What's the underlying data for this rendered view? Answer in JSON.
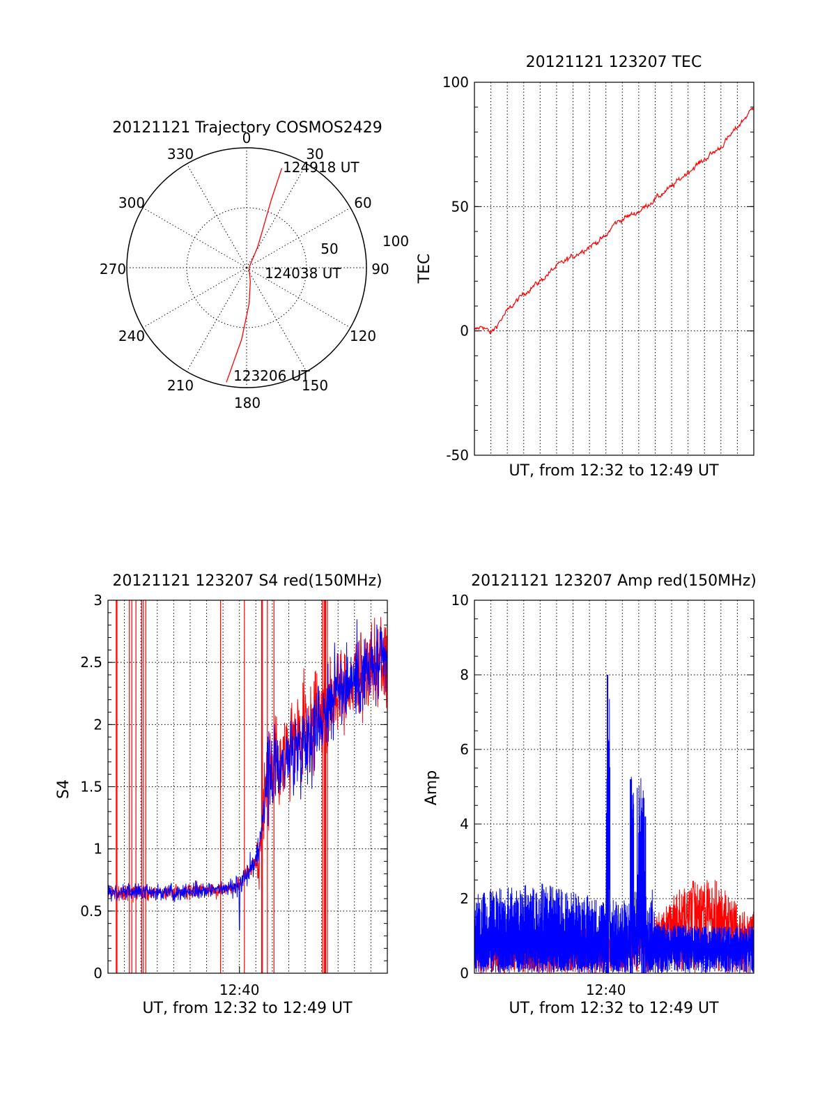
{
  "chart_data": [
    {
      "type": "polar",
      "title": "20121121 Trajectory COSMOS2429",
      "azimuth_labels": [
        "0",
        "30",
        "60",
        "90",
        "120",
        "150",
        "180",
        "210",
        "240",
        "270",
        "300",
        "330"
      ],
      "radial_labels": [
        "50",
        "100"
      ],
      "grid": true,
      "series": [
        {
          "color": "#ff0000",
          "azimuth": [
            190,
            184,
            176,
            165,
            90,
            28,
            20,
            19.5
          ],
          "zenith": [
            97,
            60,
            30,
            12,
            2,
            20,
            60,
            88
          ]
        }
      ],
      "annotations": [
        "124918 UT",
        "124038 UT",
        "123206 UT"
      ]
    },
    {
      "type": "line",
      "title": "20121121 123207 TEC",
      "xlabel": "UT, from 12:32 to 12:49 UT",
      "ylabel": "TEC",
      "ylim": [
        -50,
        100
      ],
      "yticks": [
        "100",
        "50",
        "0",
        "-50"
      ],
      "grid": true,
      "series": [
        {
          "color": "#ff0000",
          "x_min": [
            0,
            0.5,
            1,
            2,
            3,
            4,
            5,
            6,
            7,
            8,
            8.5,
            9,
            10,
            11,
            12,
            13,
            14,
            15,
            16,
            17
          ],
          "values": [
            0,
            2,
            -1,
            8,
            15,
            20,
            26,
            30,
            34,
            38,
            43,
            45,
            48,
            53,
            58,
            64,
            69,
            74,
            82,
            90
          ]
        }
      ]
    },
    {
      "type": "line",
      "title": "20121121 123207 S4 red(150MHz)",
      "xlabel": "UT, from 12:32 to 12:49 UT",
      "ylabel": "S4",
      "xticks": [
        "12:40"
      ],
      "ylim": [
        0,
        3
      ],
      "yticks": [
        "3",
        "2.5",
        "2",
        "1.5",
        "1",
        "0.5",
        "0"
      ],
      "grid": true,
      "series": [
        {
          "color": "#0000ff",
          "x_min": [
            0,
            4,
            7,
            8,
            9.2,
            9.6,
            11,
            12.5,
            14,
            17
          ],
          "values": [
            0.65,
            0.65,
            0.68,
            0.72,
            0.95,
            1.55,
            1.75,
            1.95,
            2.3,
            2.5
          ]
        },
        {
          "color": "#ff0000",
          "x_min": [
            0,
            4,
            7,
            8,
            9.2,
            9.6,
            11,
            12.5,
            14,
            17
          ],
          "values": [
            0.65,
            0.65,
            0.68,
            0.72,
            0.95,
            1.55,
            1.8,
            2.0,
            2.3,
            2.5
          ]
        }
      ]
    },
    {
      "type": "line",
      "title": "20121121 123207 Amp red(150MHz)",
      "xlabel": "UT, from 12:32 to 12:49 UT",
      "ylabel": "Amp",
      "xticks": [
        "12:40"
      ],
      "ylim": [
        0,
        10
      ],
      "yticks": [
        "10",
        "8",
        "6",
        "4",
        "2",
        "0"
      ],
      "grid": true,
      "series": [
        {
          "color": "#0000ff",
          "x_min": [
            0,
            4,
            8,
            8.1,
            9.5,
            10.3,
            11,
            14,
            17
          ],
          "values": [
            2.0,
            2.2,
            1.8,
            8.0,
            5.2,
            4.7,
            1.3,
            1.2,
            1.2
          ]
        },
        {
          "color": "#ff0000",
          "x_min": [
            11,
            13,
            14.6,
            16.5
          ],
          "values": [
            1.4,
            2.3,
            2.3,
            1.5
          ]
        }
      ]
    }
  ]
}
